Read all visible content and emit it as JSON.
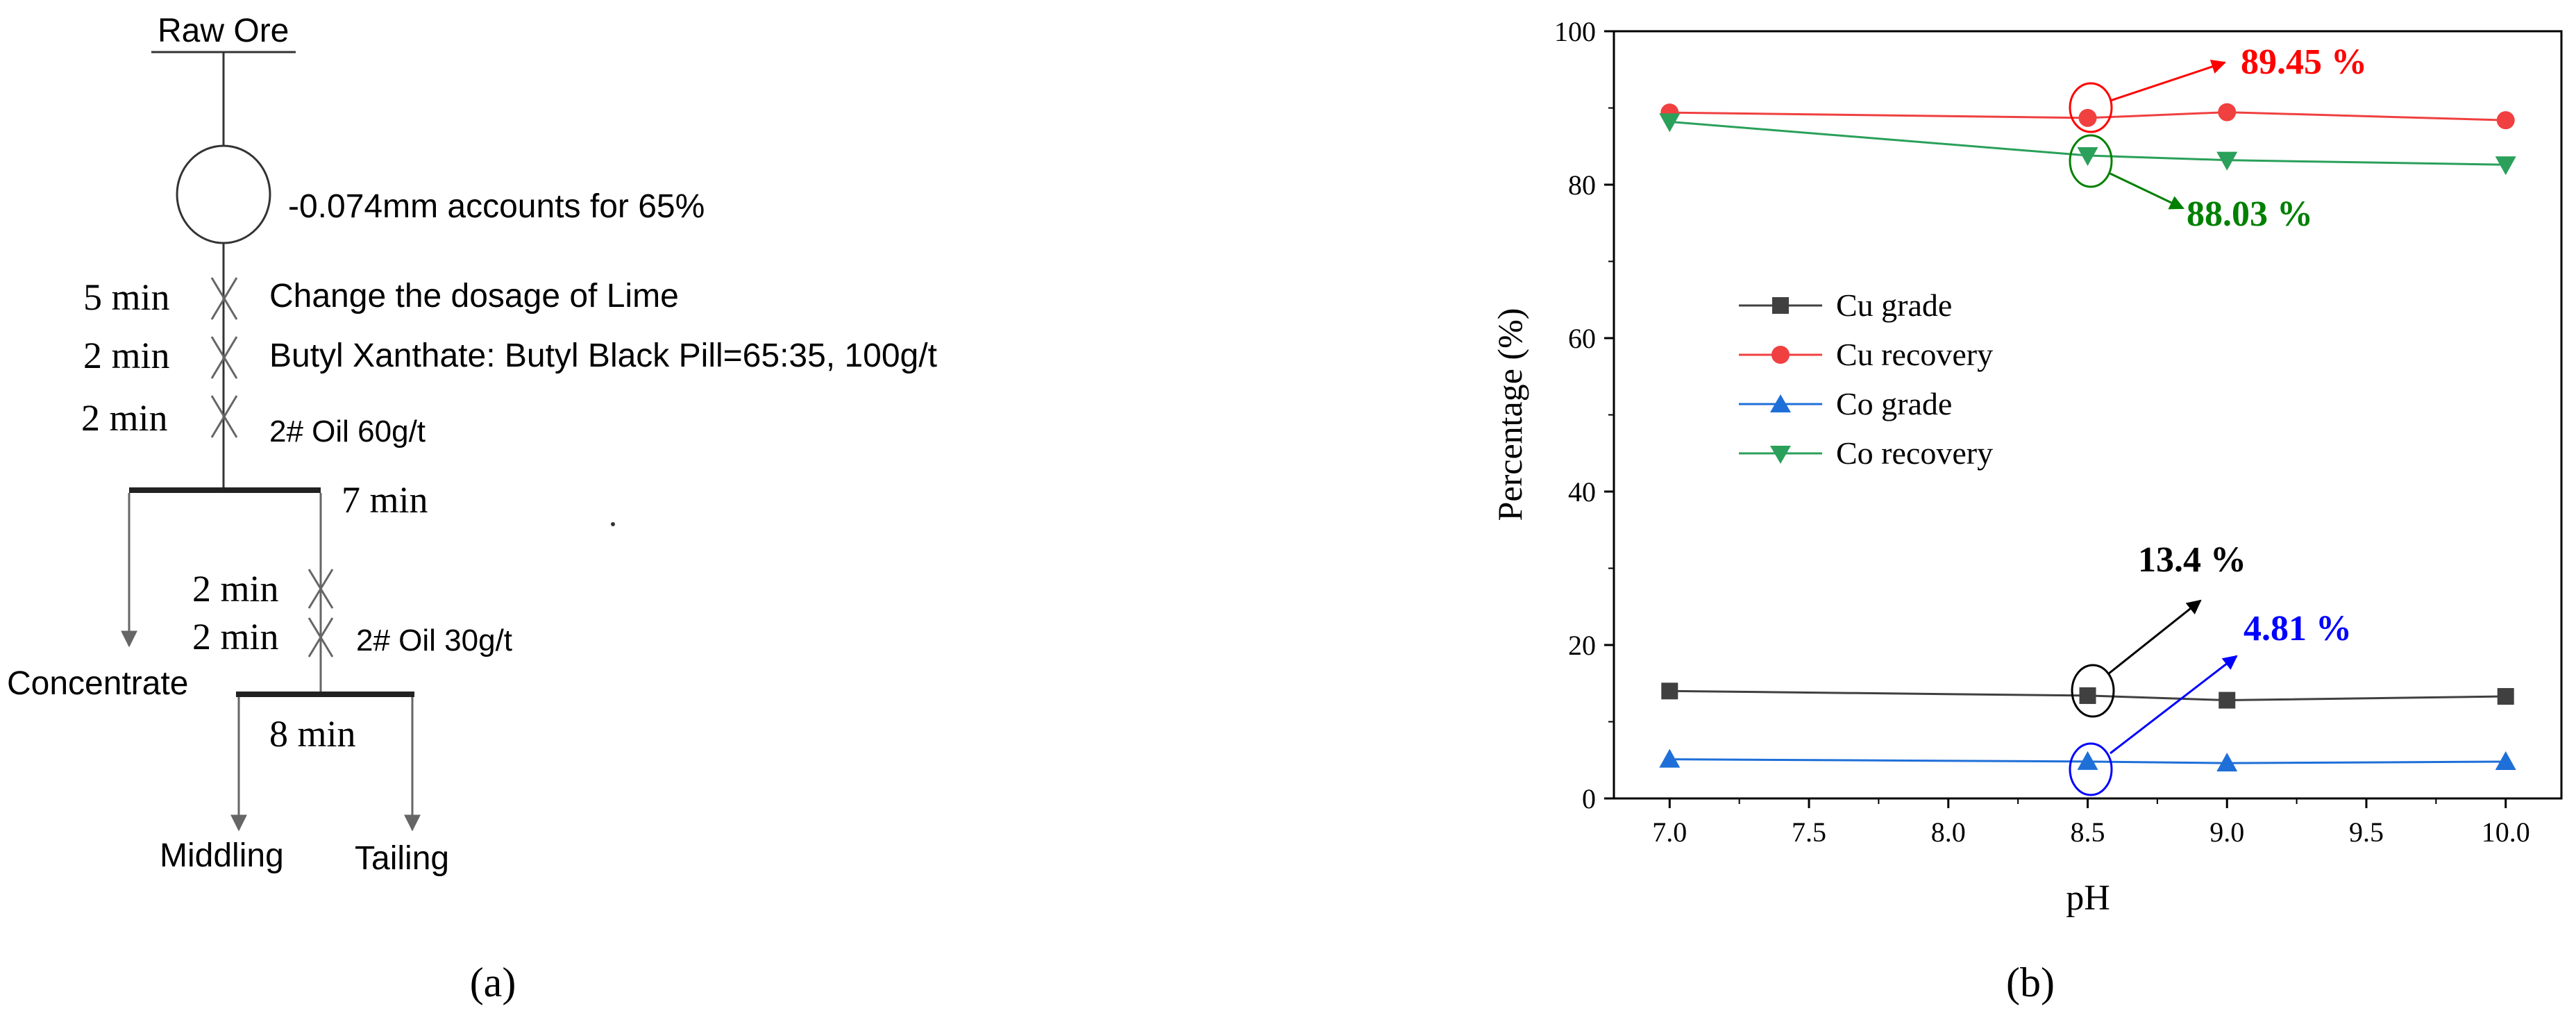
{
  "flowsheet": {
    "raw_ore": "Raw Ore",
    "grinding_note": "-0.074mm accounts for 65%",
    "step1_time": "5 min",
    "step1_reagent": "Change the dosage of Lime",
    "step2_time": "2 min",
    "step2_reagent": "Butyl Xanthate: Butyl Black Pill=65:35, 100g/t",
    "step3_time": "2 min",
    "step3_reagent": "2# Oil 60g/t",
    "rougher_time": "7 min",
    "scav1_time": "2 min",
    "scav2_time": "2 min",
    "scav2_reagent": "2# Oil 30g/t",
    "concentrate": "Concentrate",
    "scavenger_time": "8 min",
    "middling": "Middling",
    "tailing": "Tailing",
    "panel_label": "(a)"
  },
  "chart_data": {
    "type": "line",
    "title": "",
    "xlabel": "pH",
    "ylabel": "Percentage (%)",
    "xlim": [
      6.8,
      10.2
    ],
    "ylim": [
      0,
      100
    ],
    "x_ticks": [
      "7.0",
      "7.5",
      "8.0",
      "8.5",
      "9.0",
      "9.5",
      "10.0"
    ],
    "y_ticks": [
      "0",
      "20",
      "40",
      "60",
      "80",
      "100"
    ],
    "x": [
      7.0,
      8.5,
      9.0,
      10.0
    ],
    "series": [
      {
        "name": "Cu grade",
        "values": [
          14.0,
          13.4,
          12.8,
          13.3
        ],
        "color": "#404040",
        "marker": "square"
      },
      {
        "name": "Cu recovery",
        "values": [
          89.4,
          88.7,
          89.45,
          88.4
        ],
        "color": "#f04040",
        "marker": "circle"
      },
      {
        "name": "Co grade",
        "values": [
          5.1,
          4.81,
          4.6,
          4.8
        ],
        "color": "#1f6fd8",
        "marker": "triangle-up"
      },
      {
        "name": "Co recovery",
        "values": [
          88.2,
          83.8,
          83.2,
          82.6
        ],
        "color": "#2aa05a",
        "marker": "triangle-down"
      }
    ],
    "legend_position": "left, upper-middle",
    "annotations": [
      {
        "text": "89.45 %",
        "color": "#ff0000"
      },
      {
        "text": "88.03 %",
        "color": "#008000"
      },
      {
        "text": "13.4 %",
        "color": "#000000"
      },
      {
        "text": "4.81 %",
        "color": "#0000ff"
      }
    ],
    "panel_label": "(b)"
  }
}
